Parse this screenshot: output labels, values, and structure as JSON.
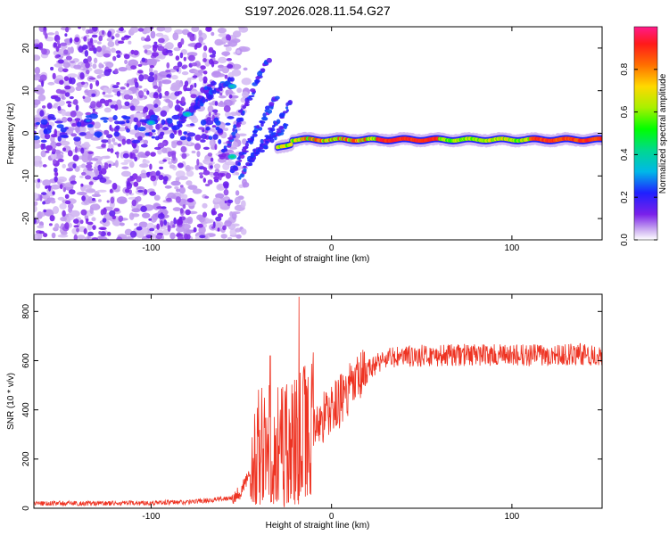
{
  "title": "S197.2026.028.11.54.G27",
  "chart_data": [
    {
      "type": "heatmap",
      "xlabel": "Height of straight line (km)",
      "ylabel": "Frequency (Hz)",
      "xlim": [
        -165,
        150
      ],
      "ylim": [
        -25,
        25
      ],
      "x_ticks": [
        -100,
        0,
        100
      ],
      "y_ticks": [
        20,
        10,
        0,
        -10,
        -20
      ],
      "colorbar": {
        "label": "Normalized spectral amplitude",
        "range": [
          0,
          1
        ],
        "ticks": [
          0.0,
          0.2,
          0.4,
          0.6,
          0.8
        ]
      },
      "features": {
        "noise_region_km": [
          -165,
          -55
        ],
        "carrier_line_km": [
          -30,
          150
        ],
        "carrier_freq_hz": -1.5
      }
    },
    {
      "type": "line",
      "xlabel": "Height of straight line (km)",
      "ylabel": "SNR (10 * v/v)",
      "xlim": [
        -165,
        150
      ],
      "ylim": [
        0,
        870
      ],
      "x_ticks": [
        -100,
        0,
        100
      ],
      "y_ticks": [
        0,
        200,
        400,
        600,
        800
      ],
      "series": [
        {
          "name": "SNR",
          "color": "#ee3322",
          "x": [
            -165,
            -140,
            -120,
            -100,
            -80,
            -65,
            -55,
            -50,
            -45,
            -40,
            -35,
            -30,
            -25,
            -20,
            -15,
            -10,
            -5,
            0,
            5,
            10,
            15,
            20,
            25,
            30,
            40,
            50,
            60,
            80,
            100,
            120,
            150
          ],
          "values": [
            20,
            20,
            20,
            22,
            25,
            35,
            45,
            70,
            150,
            260,
            270,
            260,
            260,
            270,
            300,
            330,
            370,
            400,
            440,
            480,
            520,
            560,
            590,
            610,
            615,
            620,
            620,
            625,
            620,
            625,
            625
          ]
        }
      ],
      "peaks": [
        {
          "x": -34,
          "value": 620
        },
        {
          "x": -18,
          "value": 860
        }
      ]
    }
  ]
}
